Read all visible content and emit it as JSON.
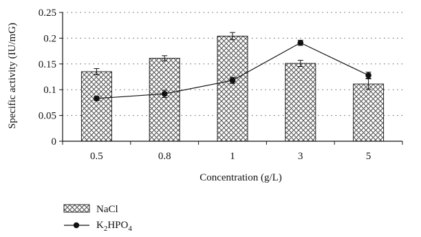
{
  "chart_data": {
    "type": "bar",
    "xlabel": "Concentration (g/L)",
    "ylabel": "Specific activity (IU/mG)",
    "ylim": [
      0,
      0.25
    ],
    "yticks": [
      "0",
      "0.05",
      "0.1",
      "0.15",
      "0.2",
      "0.25"
    ],
    "categories": [
      "0.5",
      "0.8",
      "1",
      "3",
      "5"
    ],
    "grid": "horizontal dotted",
    "legend_position": "bottom-left",
    "series": [
      {
        "name": "NaCl",
        "type": "bar",
        "pattern": "crosshatch",
        "values": [
          0.135,
          0.161,
          0.204,
          0.151,
          0.111
        ],
        "errors": [
          0.006,
          0.005,
          0.007,
          0.006,
          0.01
        ]
      },
      {
        "name": "K2HPO4",
        "type": "line",
        "marker": "filled-circle",
        "values": [
          0.083,
          0.092,
          0.118,
          0.191,
          0.128
        ],
        "errors": [
          0.004,
          0.007,
          0.006,
          0.005,
          0.006
        ]
      }
    ]
  }
}
